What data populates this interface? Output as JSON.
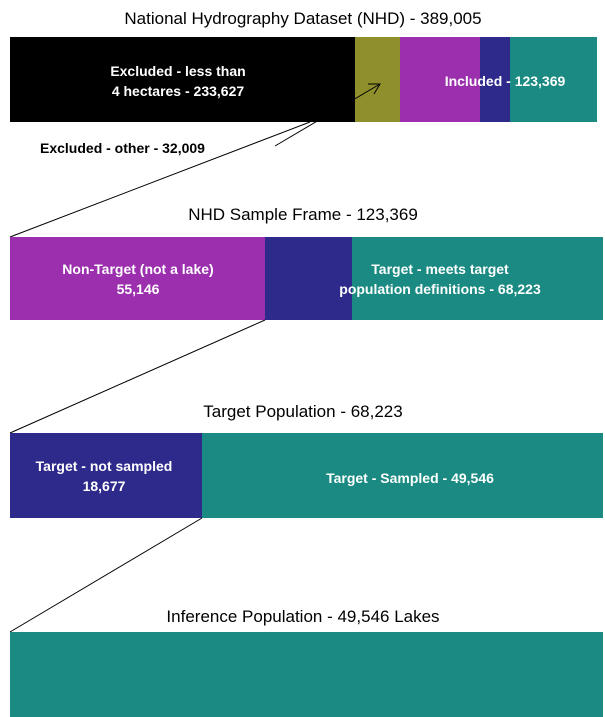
{
  "sections": [
    {
      "title": "National Hydrography Dataset (NHD) - 389,005",
      "labels": [
        [
          "Excluded - less than",
          "4 hectares - 233,627"
        ],
        [
          "Included - 123,369"
        ],
        [
          "Excluded - other - 32,009"
        ]
      ]
    },
    {
      "title": "NHD Sample Frame - 123,369",
      "labels": [
        [
          "Non-Target (not a lake)",
          "55,146"
        ],
        [
          "Target - meets target",
          "population definitions - 68,223"
        ]
      ]
    },
    {
      "title": "Target Population - 68,223",
      "labels": [
        [
          "Target - not sampled",
          "18,677"
        ],
        [
          "Target - Sampled - 49,546"
        ]
      ]
    },
    {
      "title": "Inference Population - 49,546 Lakes",
      "labels": []
    }
  ]
}
